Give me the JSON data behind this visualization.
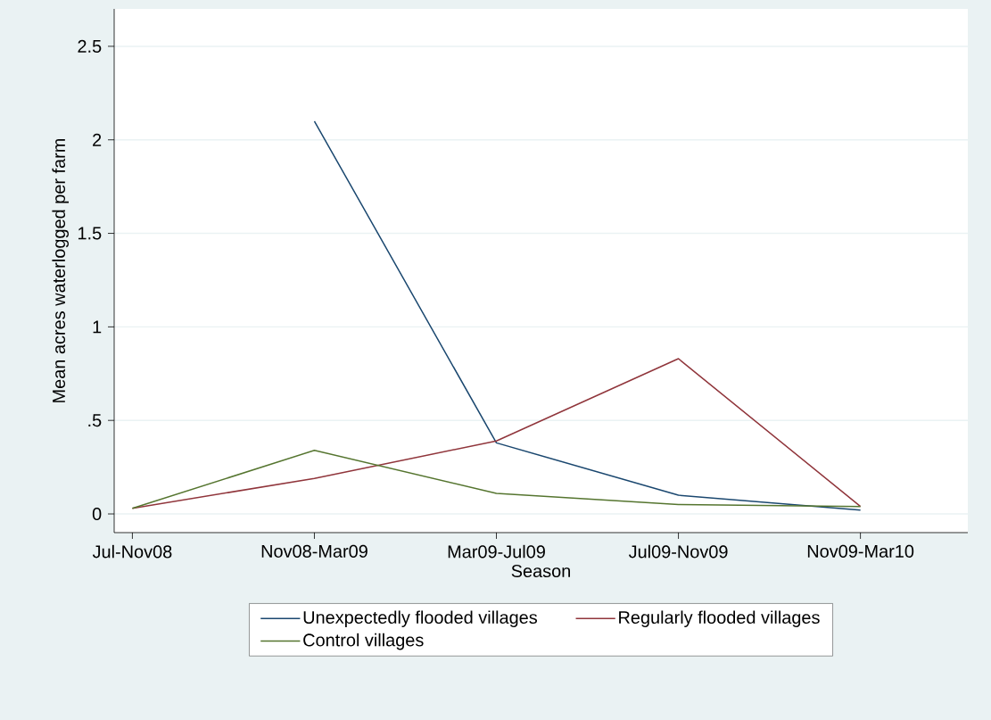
{
  "chart_data": {
    "type": "line",
    "xlabel": "Season",
    "ylabel": "Mean acres waterlogged per farm",
    "categories": [
      "Jul-Nov08",
      "Nov08-Mar09",
      "Mar09-Jul09",
      "Jul09-Nov09",
      "Nov09-Mar10"
    ],
    "series": [
      {
        "name": "Unexpectedly flooded villages",
        "color": "#1a476f",
        "values": [
          null,
          2.1,
          0.38,
          0.1,
          0.02
        ]
      },
      {
        "name": "Regularly flooded villages",
        "color": "#90353b",
        "values": [
          0.03,
          0.19,
          0.39,
          0.83,
          0.04
        ]
      },
      {
        "name": "Control villages",
        "color": "#55752f",
        "values": [
          0.03,
          0.34,
          0.11,
          0.05,
          0.04
        ]
      }
    ],
    "ylim": [
      -0.1,
      2.7
    ],
    "yticks": [
      0,
      {
        "value": 0.5,
        "label": ".5"
      },
      1,
      1.5,
      2,
      2.5
    ],
    "grid": "y",
    "legend": "bottom",
    "marker": "none",
    "line_style": "solid"
  }
}
